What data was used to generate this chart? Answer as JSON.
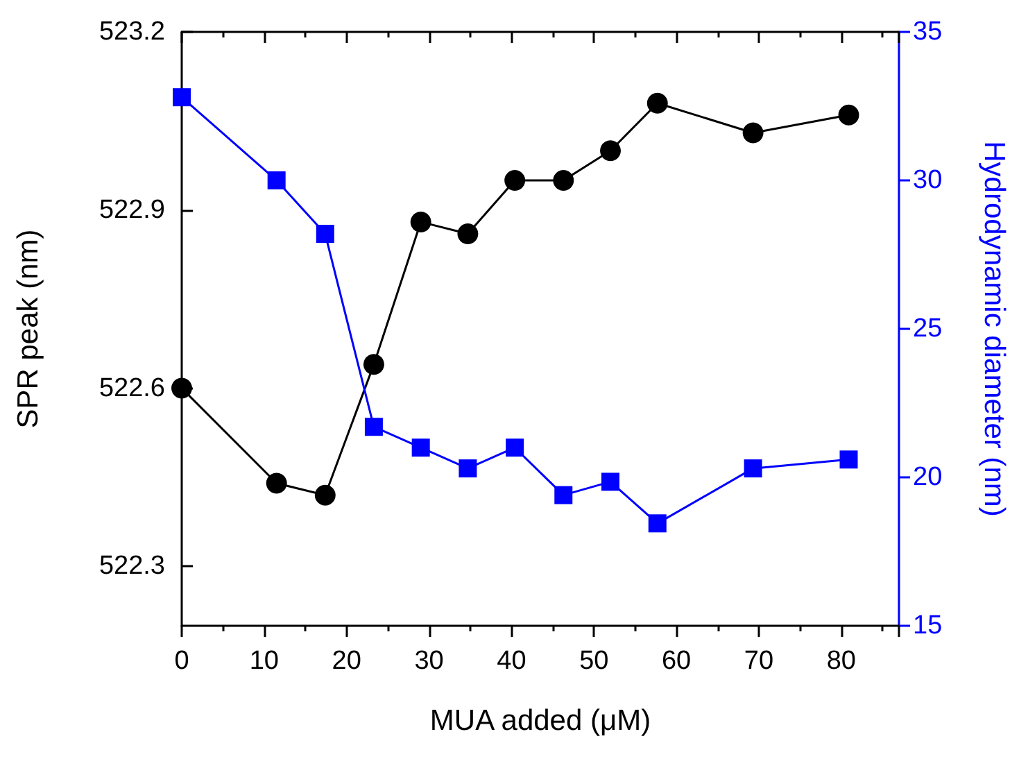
{
  "chart_data": {
    "type": "line",
    "xlabel": "MUA added (μM)",
    "ylabel": "SPR peak (nm)",
    "y2label": "Hydrodynamic diameter (nm)",
    "x": [
      0,
      11.5,
      17.4,
      23.3,
      29.0,
      34.7,
      40.4,
      46.3,
      52.0,
      57.7,
      69.3,
      80.9
    ],
    "xlim": [
      0,
      87
    ],
    "xticks": [
      0,
      10,
      20,
      30,
      40,
      50,
      60,
      70,
      80
    ],
    "ylim": [
      522.2,
      523.2
    ],
    "yticks": [
      522.3,
      522.6,
      522.9,
      523.2
    ],
    "y2lim": [
      15,
      35
    ],
    "y2ticks": [
      15,
      20,
      25,
      30,
      35
    ],
    "series": [
      {
        "color": "#000000",
        "marker": "circle",
        "values": [
          522.6,
          522.44,
          522.42,
          522.64,
          522.88,
          522.86,
          522.95,
          522.95,
          523.0,
          523.08,
          523.03,
          523.06
        ]
      },
      {
        "color": "#0000ff",
        "marker": "square",
        "axis": "y2",
        "values": [
          32.8,
          30.0,
          28.2,
          21.7,
          21.0,
          20.3,
          21.0,
          19.4,
          19.85,
          18.45,
          20.3,
          20.6
        ]
      }
    ],
    "grid": false,
    "line_style": "solid"
  }
}
